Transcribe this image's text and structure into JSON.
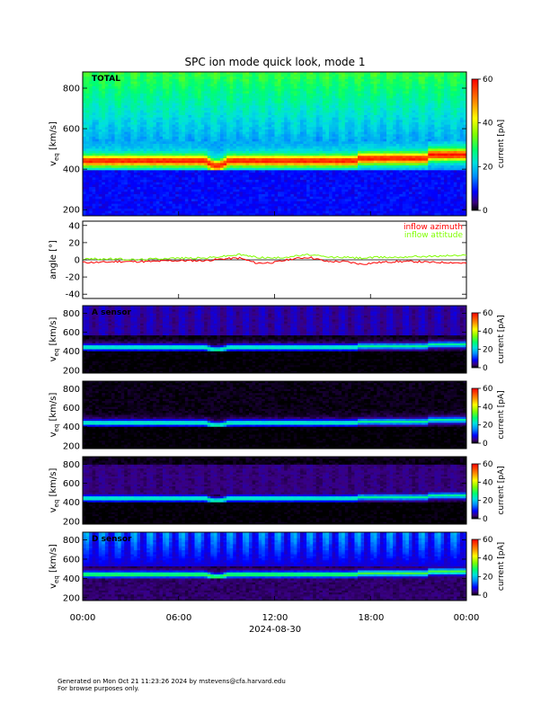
{
  "title": "SPC ion mode quick look, mode 1",
  "footer": {
    "line1": "Generated on Mon Oct 21 11:23:26 2024 by mstevens@cfa.harvard.edu",
    "line2": "For browse purposes only."
  },
  "colors": {
    "inflow_azimuth": "#ff0000",
    "inflow_attitude": "#80ff00"
  },
  "chart_data": [
    {
      "type": "heatmap",
      "panel_label": "TOTAL",
      "ylabel": "v",
      "ylabel_sub": "eq",
      "ylabel_unit": " [km/s]",
      "ylim": [
        170,
        880
      ],
      "yticks": [
        200,
        400,
        600,
        800
      ],
      "colorbar": {
        "label": "current [pA]",
        "range": [
          0,
          60
        ],
        "ticks": [
          0,
          20,
          40,
          60
        ]
      }
    },
    {
      "type": "line",
      "ylabel": "angle [°]",
      "ylim": [
        -45,
        45
      ],
      "yticks": [
        -40,
        -20,
        0,
        20,
        40
      ],
      "series": [
        {
          "name": "inflow azimuth",
          "color": "#ff0000",
          "values": [
            -3,
            -3,
            -2,
            -2,
            -2,
            -1,
            -1,
            -1,
            1,
            2,
            -4,
            -3,
            1,
            3,
            -2,
            -2,
            -5,
            -3,
            -2,
            -2,
            -3,
            -3,
            -4
          ]
        },
        {
          "name": "inflow attitude",
          "color": "#80ff00",
          "values": [
            1,
            1,
            1,
            0,
            1,
            2,
            2,
            2,
            4,
            6,
            3,
            2,
            4,
            6,
            3,
            3,
            2,
            3,
            3,
            4,
            4,
            5,
            5
          ]
        }
      ]
    },
    {
      "type": "heatmap",
      "panel_label": "A sensor",
      "ylabel": "v",
      "ylabel_sub": "eq",
      "ylabel_unit": " [km/s]",
      "ylim": [
        170,
        880
      ],
      "yticks": [
        200,
        400,
        600,
        800
      ],
      "colorbar": {
        "label": "current [pA]",
        "range": [
          0,
          60
        ],
        "ticks": [
          0,
          20,
          40,
          60
        ]
      }
    },
    {
      "type": "heatmap",
      "panel_label": "",
      "ylabel": "v",
      "ylabel_sub": "eq",
      "ylabel_unit": " [km/s]",
      "ylim": [
        170,
        880
      ],
      "yticks": [
        200,
        400,
        600,
        800
      ],
      "colorbar": {
        "label": "current [pA]",
        "range": [
          0,
          60
        ],
        "ticks": [
          0,
          20,
          40,
          60
        ]
      }
    },
    {
      "type": "heatmap",
      "panel_label": "",
      "ylabel": "v",
      "ylabel_sub": "eq",
      "ylabel_unit": " [km/s]",
      "ylim": [
        170,
        880
      ],
      "yticks": [
        200,
        400,
        600,
        800
      ],
      "colorbar": {
        "label": "current [pA]",
        "range": [
          0,
          60
        ],
        "ticks": [
          0,
          20,
          40,
          60
        ]
      }
    },
    {
      "type": "heatmap",
      "panel_label": "D sensor",
      "ylabel": "v",
      "ylabel_sub": "eq",
      "ylabel_unit": " [km/s]",
      "ylim": [
        170,
        880
      ],
      "yticks": [
        200,
        400,
        600,
        800
      ],
      "colorbar": {
        "label": "current [pA]",
        "range": [
          0,
          60
        ],
        "ticks": [
          0,
          20,
          40,
          60
        ]
      }
    }
  ],
  "xaxis": {
    "ticks": [
      "00:00",
      "06:00",
      "12:00",
      "18:00",
      "00:00"
    ],
    "date": "2024-08-30"
  }
}
